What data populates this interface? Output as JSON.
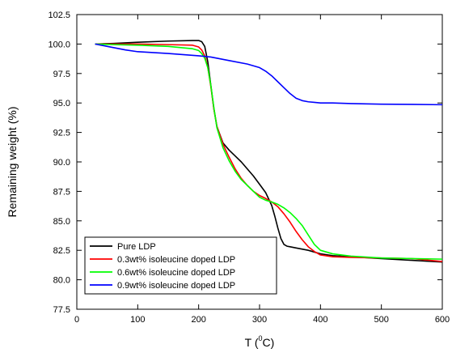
{
  "chart_data": {
    "type": "line",
    "title": "",
    "xlabel": "T (",
    "xlabel_sup": "0",
    "xlabel_suffix": "C)",
    "ylabel": "Remaining weight (%)",
    "xlim": [
      0,
      600
    ],
    "ylim": [
      77.5,
      102.5
    ],
    "xticks": [
      "0",
      "100",
      "200",
      "300",
      "400",
      "500",
      "600"
    ],
    "yticks": [
      "77.5",
      "80.0",
      "82.5",
      "85.0",
      "87.5",
      "90.0",
      "92.5",
      "95.0",
      "97.5",
      "100.0",
      "102.5"
    ],
    "grid": false,
    "legend_position": "bottom-left",
    "series": [
      {
        "name": "Pure LDP",
        "color": "#000000",
        "x": [
          30,
          60,
          100,
          150,
          190,
          200,
          205,
          210,
          215,
          220,
          225,
          230,
          240,
          250,
          260,
          270,
          280,
          290,
          300,
          310,
          320,
          325,
          330,
          335,
          340,
          345,
          350,
          360,
          380,
          400,
          420,
          450,
          500,
          550,
          600
        ],
        "y": [
          100.0,
          100.05,
          100.15,
          100.25,
          100.3,
          100.3,
          100.2,
          99.8,
          98.5,
          96.5,
          94.5,
          93.0,
          91.6,
          91.0,
          90.5,
          90.0,
          89.4,
          88.8,
          88.1,
          87.4,
          86.3,
          85.4,
          84.4,
          83.5,
          83.0,
          82.85,
          82.8,
          82.7,
          82.5,
          82.2,
          82.05,
          81.95,
          81.8,
          81.65,
          81.5
        ]
      },
      {
        "name": "0.3wt% isoleucine doped LDP",
        "color": "#ff0000",
        "x": [
          30,
          60,
          100,
          150,
          190,
          200,
          205,
          210,
          215,
          220,
          225,
          230,
          240,
          250,
          260,
          270,
          280,
          290,
          300,
          310,
          320,
          330,
          340,
          350,
          360,
          370,
          380,
          390,
          400,
          420,
          450,
          500,
          550,
          600
        ],
        "y": [
          100.0,
          100.0,
          100.0,
          99.95,
          99.9,
          99.75,
          99.5,
          99.0,
          98.0,
          96.4,
          94.5,
          93.0,
          91.5,
          90.4,
          89.4,
          88.6,
          88.0,
          87.5,
          87.15,
          86.9,
          86.6,
          86.2,
          85.6,
          84.9,
          84.1,
          83.4,
          82.8,
          82.4,
          82.1,
          81.95,
          81.9,
          81.85,
          81.8,
          81.55
        ]
      },
      {
        "name": "0.6wt% isoleucine doped LDP",
        "color": "#00ff00",
        "x": [
          30,
          60,
          100,
          150,
          190,
          200,
          205,
          210,
          215,
          220,
          225,
          230,
          240,
          250,
          260,
          270,
          280,
          290,
          300,
          310,
          320,
          330,
          340,
          350,
          360,
          370,
          380,
          390,
          400,
          420,
          450,
          500,
          550,
          600
        ],
        "y": [
          100.0,
          99.95,
          99.9,
          99.8,
          99.6,
          99.45,
          99.2,
          98.8,
          98.0,
          96.5,
          94.6,
          92.9,
          91.2,
          90.1,
          89.2,
          88.5,
          88.0,
          87.5,
          87.0,
          86.75,
          86.6,
          86.4,
          86.1,
          85.7,
          85.2,
          84.6,
          83.8,
          83.0,
          82.5,
          82.2,
          82.0,
          81.85,
          81.8,
          81.75
        ]
      },
      {
        "name": "0.9wt% isoleucine doped LDP",
        "color": "#0000ff",
        "x": [
          30,
          50,
          80,
          100,
          150,
          200,
          220,
          250,
          280,
          300,
          310,
          320,
          330,
          340,
          350,
          360,
          370,
          380,
          390,
          400,
          420,
          450,
          500,
          550,
          600
        ],
        "y": [
          100.0,
          99.8,
          99.5,
          99.35,
          99.2,
          99.0,
          98.9,
          98.6,
          98.3,
          98.0,
          97.7,
          97.3,
          96.8,
          96.3,
          95.8,
          95.4,
          95.2,
          95.1,
          95.05,
          95.0,
          95.0,
          94.95,
          94.9,
          94.88,
          94.85
        ]
      }
    ]
  }
}
